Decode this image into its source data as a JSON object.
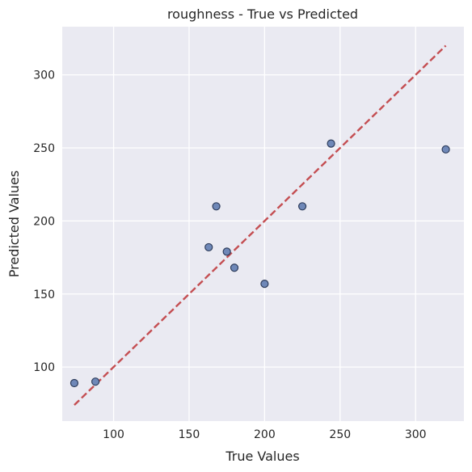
{
  "chart_data": {
    "type": "scatter",
    "title": "roughness - True vs Predicted",
    "xlabel": "True Values",
    "ylabel": "Predicted Values",
    "xlim": [
      66,
      332
    ],
    "ylim": [
      63,
      333
    ],
    "xticks": [
      100,
      150,
      200,
      250,
      300
    ],
    "yticks": [
      100,
      150,
      200,
      250,
      300
    ],
    "xtick_labels": [
      "100",
      "150",
      "200",
      "250",
      "300"
    ],
    "ytick_labels": [
      "100",
      "150",
      "200",
      "250",
      "300"
    ],
    "grid": true,
    "points": [
      {
        "x": 74,
        "y": 89
      },
      {
        "x": 88,
        "y": 90
      },
      {
        "x": 163,
        "y": 182
      },
      {
        "x": 168,
        "y": 210
      },
      {
        "x": 175,
        "y": 179
      },
      {
        "x": 180,
        "y": 168
      },
      {
        "x": 200,
        "y": 157
      },
      {
        "x": 225,
        "y": 210
      },
      {
        "x": 244,
        "y": 253
      },
      {
        "x": 320,
        "y": 249
      }
    ],
    "reference_line": {
      "x": [
        74,
        320
      ],
      "y": [
        74,
        320
      ],
      "style": "dashed"
    },
    "colors": {
      "background": "#eaeaf2",
      "grid": "#ffffff",
      "marker_fill": "#6f88b8",
      "marker_edge": "#2e3d5c",
      "reference_line": "#c44e52"
    }
  }
}
